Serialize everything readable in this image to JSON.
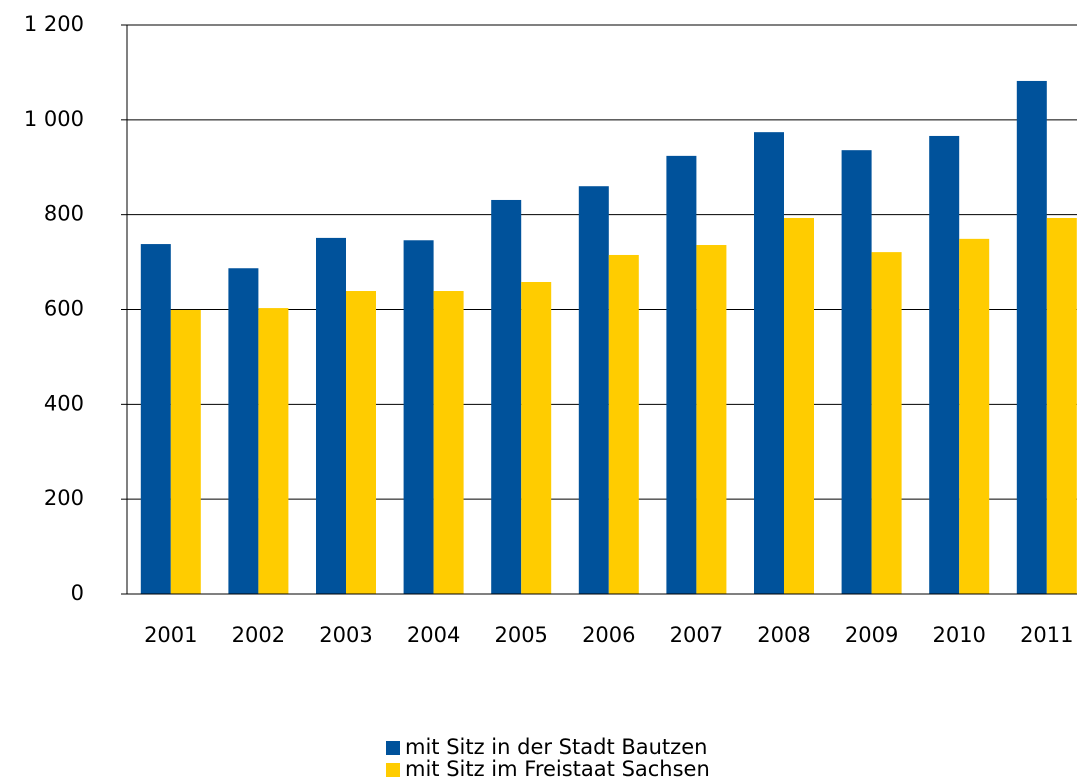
{
  "chart_data": {
    "type": "bar",
    "categories": [
      "2001",
      "2002",
      "2003",
      "2004",
      "2005",
      "2006",
      "2007",
      "2008",
      "2009",
      "2010",
      "2011"
    ],
    "series": [
      {
        "name": "mit Sitz in der Stadt Bautzen",
        "color": "#00529b",
        "values": [
          738,
          687,
          751,
          746,
          831,
          860,
          924,
          974,
          936,
          966,
          1082
        ]
      },
      {
        "name": "mit Sitz im Freistaat Sachsen",
        "color": "#ffcc00",
        "values": [
          599,
          603,
          639,
          639,
          658,
          715,
          736,
          793,
          721,
          749,
          793
        ]
      }
    ],
    "ylim": [
      0,
      1200
    ],
    "yticks": [
      0,
      200,
      400,
      600,
      800,
      {
        "value": 1000,
        "label": "1 000"
      },
      {
        "value": 1200,
        "label": "1 200"
      }
    ],
    "grid": true,
    "legend": "bottom"
  }
}
